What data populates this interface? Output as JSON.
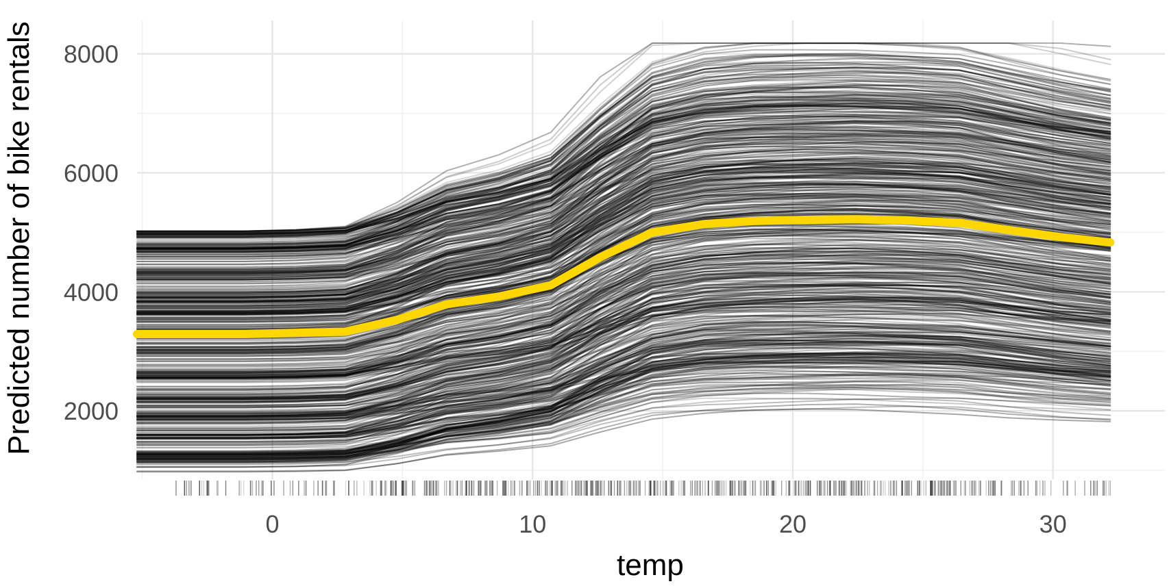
{
  "chart_data": {
    "type": "line",
    "xlabel": "temp",
    "ylabel": "Predicted number of bike rentals",
    "xlim": [
      -5.2,
      34.3
    ],
    "ylim": [
      850,
      8560
    ],
    "x_ticks": [
      0,
      10,
      20,
      30
    ],
    "x_tick_labels": [
      "0",
      "10",
      "20",
      "30"
    ],
    "y_ticks": [
      2000,
      4000,
      6000,
      8000
    ],
    "y_tick_labels": [
      "2000",
      "4000",
      "6000",
      "8000"
    ],
    "grid": true,
    "legend": "none",
    "grid_points": [
      -5.2,
      -3.2,
      -1.1,
      0.9,
      2.8,
      4.8,
      6.7,
      8.7,
      10.7,
      12.6,
      14.6,
      16.6,
      18.5,
      20.5,
      22.4,
      24.4,
      26.4,
      28.3,
      30.3,
      32.2
    ],
    "pdp": {
      "color": "#FFD700",
      "x": [
        -5.2,
        -3.2,
        -1.1,
        0.9,
        2.8,
        4.8,
        6.7,
        8.7,
        10.7,
        12.6,
        14.6,
        16.6,
        18.5,
        20.5,
        22.4,
        24.4,
        26.4,
        28.3,
        30.3,
        32.2
      ],
      "y": [
        3290,
        3290,
        3290,
        3310,
        3330,
        3530,
        3790,
        3920,
        4110,
        4580,
        5000,
        5140,
        5190,
        5210,
        5220,
        5200,
        5160,
        5040,
        4920,
        4830
      ]
    },
    "ice": {
      "color": "#000000",
      "count": 620,
      "baseline_range": [
        950,
        5020
      ],
      "max_range": [
        2450,
        8200
      ]
    },
    "rug": {
      "color": "#000000",
      "min": -3.7,
      "max": 32.2
    }
  }
}
